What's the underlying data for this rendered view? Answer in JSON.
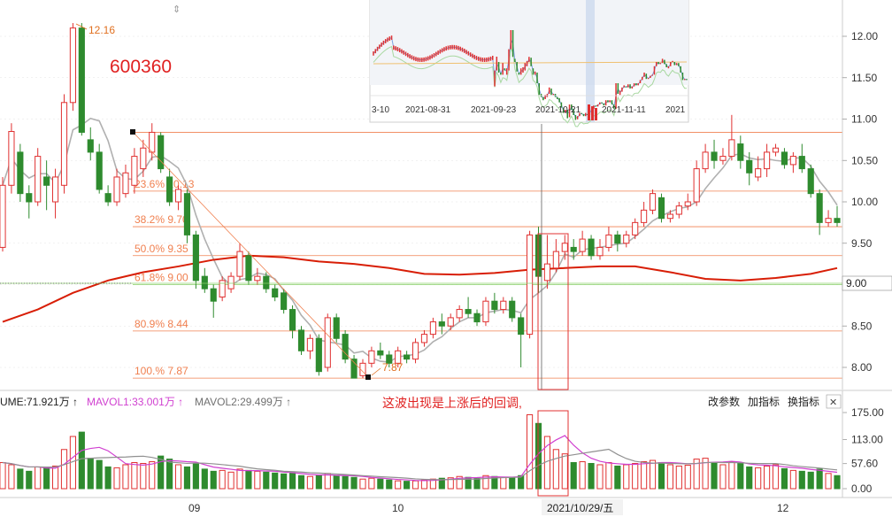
{
  "stock_code": "600360",
  "annotation_note": "这波出现是上涨后的回调,",
  "high_label": "12.16",
  "low_label": "7.87",
  "crosshair_date": "2021/10/29/五",
  "crosshair_price": "9.00",
  "volume_panel": {
    "vol_label": "UME:71.921万 ↑",
    "mavol1_label": "MAVOL1:33.001万 ↑",
    "mavol2_label": "MAVOL2:29.499万 ↑",
    "buttons": [
      "改参数",
      "加指标",
      "换指标"
    ],
    "close_glyph": "✕"
  },
  "price_axis": {
    "ticks": [
      "12.00",
      "11.50",
      "11.00",
      "10.50",
      "10.00",
      "9.50",
      "9.00",
      "8.50",
      "8.00"
    ]
  },
  "volume_axis": {
    "ticks": [
      "175.00",
      "113.00",
      "57.60",
      "0.00"
    ]
  },
  "x_axis": {
    "labels": [
      "09",
      "10",
      "12"
    ]
  },
  "fib_levels": [
    {
      "label": "23.6% 10.13",
      "price": 10.13
    },
    {
      "label": "38.2% 9.70",
      "price": 9.7
    },
    {
      "label": "50.0% 9.35",
      "price": 9.35
    },
    {
      "label": "61.8% 9.00",
      "price": 9.0
    },
    {
      "label": "80.9% 8.44",
      "price": 8.44
    },
    {
      "label": "100.% 7.87",
      "price": 7.87
    }
  ],
  "overview": {
    "dates": [
      "3-10",
      "2021-08-31",
      "2021-09-23",
      "2021-10-21",
      "2021-11-11",
      "2021"
    ]
  },
  "colors": {
    "up": "#e03030",
    "down": "#2e8b2e",
    "ma_red": "#d81e06",
    "ma_gray": "#b0b0b0",
    "fib": "#f08050",
    "mavol1": "#d040d0",
    "mavol2": "#909090"
  },
  "chart_data": {
    "type": "candlestick",
    "fib_top": 10.84,
    "fib_bottom": 7.87,
    "candles": [
      [
        9.45,
        10.2,
        10.3,
        9.4
      ],
      [
        10.2,
        10.85,
        10.95,
        10.1
      ],
      [
        10.6,
        10.1,
        10.7,
        10.0
      ],
      [
        10.1,
        10.0,
        10.2,
        9.8
      ],
      [
        10.0,
        10.55,
        10.65,
        9.95
      ],
      [
        10.3,
        10.2,
        10.5,
        9.9
      ],
      [
        10.0,
        10.3,
        10.4,
        9.8
      ],
      [
        10.2,
        11.2,
        11.3,
        10.1
      ],
      [
        11.2,
        12.1,
        12.16,
        11.1
      ],
      [
        12.1,
        10.84,
        12.16,
        10.8
      ],
      [
        10.75,
        10.6,
        10.9,
        10.5
      ],
      [
        10.6,
        10.15,
        10.7,
        10.1
      ],
      [
        10.1,
        10.0,
        10.2,
        9.95
      ],
      [
        10.0,
        10.3,
        10.4,
        9.95
      ],
      [
        10.1,
        10.35,
        10.45,
        10.05
      ],
      [
        10.2,
        10.55,
        10.65,
        10.1
      ],
      [
        10.4,
        10.65,
        10.75,
        10.3
      ],
      [
        10.6,
        10.84,
        10.95,
        10.5
      ],
      [
        10.8,
        10.4,
        10.84,
        10.35
      ],
      [
        10.3,
        10.0,
        10.4,
        9.95
      ],
      [
        10.0,
        10.15,
        10.2,
        9.9
      ],
      [
        10.1,
        9.6,
        10.15,
        9.5
      ],
      [
        9.6,
        9.05,
        9.65,
        8.95
      ],
      [
        9.1,
        8.95,
        9.2,
        8.9
      ],
      [
        8.95,
        8.8,
        9.0,
        8.6
      ],
      [
        8.85,
        9.05,
        9.1,
        8.8
      ],
      [
        8.95,
        9.1,
        9.15,
        8.9
      ],
      [
        9.1,
        9.4,
        9.5,
        9.05
      ],
      [
        9.35,
        9.05,
        9.4,
        9.0
      ],
      [
        9.05,
        9.1,
        9.2,
        9.0
      ],
      [
        9.1,
        8.95,
        9.15,
        8.9
      ],
      [
        8.95,
        8.85,
        9.0,
        8.8
      ],
      [
        8.9,
        8.7,
        8.95,
        8.65
      ],
      [
        8.7,
        8.45,
        8.75,
        8.35
      ],
      [
        8.45,
        8.2,
        8.5,
        8.15
      ],
      [
        8.2,
        8.35,
        8.4,
        8.1
      ],
      [
        8.35,
        7.95,
        8.4,
        7.9
      ],
      [
        8.0,
        8.6,
        8.65,
        7.95
      ],
      [
        8.6,
        8.35,
        8.65,
        8.3
      ],
      [
        8.4,
        8.1,
        8.45,
        8.05
      ],
      [
        8.1,
        7.87,
        8.15,
        7.87
      ],
      [
        7.9,
        8.05,
        8.1,
        7.87
      ],
      [
        8.05,
        8.2,
        8.25,
        8.0
      ],
      [
        8.2,
        8.15,
        8.3,
        8.1
      ],
      [
        8.15,
        8.05,
        8.2,
        8.0
      ],
      [
        8.05,
        8.2,
        8.25,
        8.0
      ],
      [
        8.15,
        8.1,
        8.2,
        8.05
      ],
      [
        8.1,
        8.3,
        8.35,
        8.05
      ],
      [
        8.3,
        8.4,
        8.45,
        8.25
      ],
      [
        8.4,
        8.55,
        8.6,
        8.35
      ],
      [
        8.55,
        8.5,
        8.65,
        8.4
      ],
      [
        8.5,
        8.6,
        8.65,
        8.45
      ],
      [
        8.6,
        8.7,
        8.75,
        8.55
      ],
      [
        8.7,
        8.65,
        8.85,
        8.6
      ],
      [
        8.65,
        8.55,
        8.7,
        8.5
      ],
      [
        8.55,
        8.8,
        8.85,
        8.5
      ],
      [
        8.8,
        8.7,
        8.9,
        8.65
      ],
      [
        8.7,
        8.8,
        8.85,
        8.65
      ],
      [
        8.8,
        8.6,
        8.85,
        8.55
      ],
      [
        8.6,
        8.4,
        8.65,
        8.0
      ],
      [
        8.4,
        9.6,
        9.65,
        8.35
      ],
      [
        9.6,
        9.1,
        9.7,
        8.9
      ],
      [
        9.05,
        9.25,
        9.6,
        8.95
      ],
      [
        9.2,
        9.4,
        9.55,
        9.15
      ],
      [
        9.4,
        9.5,
        9.6,
        9.3
      ],
      [
        9.45,
        9.4,
        9.55,
        9.3
      ],
      [
        9.4,
        9.55,
        9.65,
        9.35
      ],
      [
        9.55,
        9.35,
        9.6,
        9.3
      ],
      [
        9.35,
        9.45,
        9.55,
        9.3
      ],
      [
        9.45,
        9.6,
        9.7,
        9.4
      ],
      [
        9.6,
        9.5,
        9.65,
        9.4
      ],
      [
        9.5,
        9.6,
        9.65,
        9.45
      ],
      [
        9.6,
        9.75,
        9.8,
        9.55
      ],
      [
        9.75,
        9.9,
        10.0,
        9.7
      ],
      [
        9.9,
        10.1,
        10.15,
        9.85
      ],
      [
        10.05,
        9.8,
        10.1,
        9.75
      ],
      [
        9.8,
        9.85,
        9.9,
        9.75
      ],
      [
        9.85,
        9.95,
        10.0,
        9.8
      ],
      [
        9.95,
        10.0,
        10.1,
        9.9
      ],
      [
        10.0,
        10.4,
        10.5,
        9.95
      ],
      [
        10.4,
        10.6,
        10.7,
        10.35
      ],
      [
        10.6,
        10.5,
        10.75,
        10.4
      ],
      [
        10.5,
        10.55,
        10.65,
        10.45
      ],
      [
        10.55,
        10.75,
        11.05,
        10.5
      ],
      [
        10.7,
        10.5,
        10.8,
        10.4
      ],
      [
        10.5,
        10.35,
        10.6,
        10.2
      ],
      [
        10.3,
        10.4,
        10.55,
        10.25
      ],
      [
        10.4,
        10.6,
        10.7,
        10.3
      ],
      [
        10.6,
        10.65,
        10.7,
        10.55
      ],
      [
        10.6,
        10.45,
        10.65,
        10.4
      ],
      [
        10.45,
        10.55,
        10.6,
        10.35
      ],
      [
        10.55,
        10.4,
        10.7,
        10.35
      ],
      [
        10.4,
        10.1,
        10.45,
        10.05
      ],
      [
        10.1,
        9.75,
        10.15,
        9.6
      ],
      [
        9.75,
        9.8,
        9.9,
        9.7
      ],
      [
        9.8,
        9.75,
        9.95,
        9.7
      ]
    ],
    "volumes": [
      60,
      55,
      45,
      40,
      50,
      48,
      52,
      90,
      120,
      130,
      70,
      65,
      50,
      48,
      55,
      60,
      58,
      62,
      75,
      68,
      55,
      50,
      58,
      45,
      40,
      42,
      38,
      45,
      42,
      40,
      38,
      36,
      34,
      36,
      30,
      28,
      30,
      35,
      30,
      28,
      26,
      22,
      24,
      22,
      20,
      18,
      17,
      18,
      20,
      22,
      24,
      25,
      28,
      26,
      24,
      30,
      28,
      26,
      25,
      30,
      170,
      150,
      120,
      90,
      80,
      60,
      62,
      58,
      55,
      60,
      52,
      55,
      58,
      62,
      65,
      60,
      55,
      52,
      54,
      68,
      70,
      60,
      55,
      62,
      58,
      50,
      48,
      52,
      55,
      46,
      42,
      40,
      38,
      45,
      35,
      30
    ],
    "ma_slow": [
      8.55,
      8.7,
      8.9,
      9.05,
      9.15,
      9.22,
      9.3,
      9.35,
      9.33,
      9.28,
      9.25,
      9.2,
      9.13,
      9.12,
      9.14,
      9.18,
      9.2,
      9.22,
      9.22,
      9.15,
      9.07,
      9.05,
      9.08,
      9.13,
      9.2
    ],
    "ma_slow_x": [
      0,
      4,
      8,
      12,
      16,
      20,
      24,
      28,
      32,
      36,
      40,
      44,
      48,
      52,
      56,
      60,
      64,
      68,
      72,
      76,
      80,
      84,
      88,
      92,
      95
    ]
  }
}
